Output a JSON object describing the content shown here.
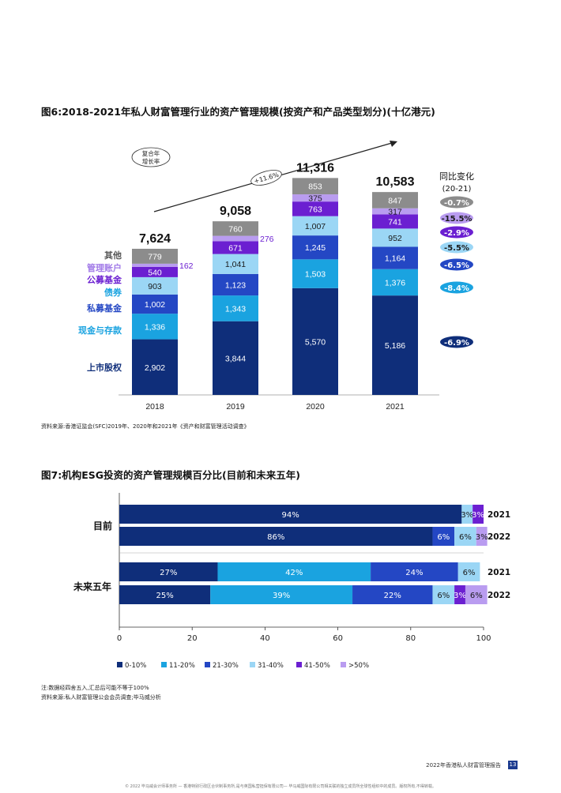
{
  "fig6": {
    "title": "图6:2018-2021年私人财富管理行业的资产管理规模(按资产和产品类型划分)(十亿港元)",
    "source": "资料来源:香港证监会(SFC)2019年、2020年和2021年《资产和财富管理活动调查》",
    "cagr_label_line1": "复合年",
    "cagr_label_line2": "增长率",
    "cagr_value": "+11.6%",
    "yoy_title_line1": "同比变化",
    "yoy_title_line2": "(20-21)"
  },
  "fig7": {
    "title": "图7:机构ESG投资的资产管理规模百分比(目前和未来五年)",
    "note": "注:数据经四舍五入,汇总后可能不等于100%",
    "source": "资料来源:私人财富管理公会会员调查;毕马威分析"
  },
  "footer": {
    "report_title": "2022年香港私人财富管理报告",
    "page_number": "13",
    "copyright": "© 2022 毕马威会计师事务所 — 香港特别行政区合伙制事务所,是与英国私营担保有限公司— 毕马威国际有限公司相关联的独立成员所全球性组织中的成员。版权所有,不得转载。"
  },
  "chart_data": [
    {
      "type": "bar",
      "stacked": true,
      "categories": [
        "2018",
        "2019",
        "2020",
        "2021"
      ],
      "totals": [
        "7,624",
        "9,058",
        "11,316",
        "10,583"
      ],
      "series": [
        {
          "name": "上市股权",
          "color": "#0f2e7a",
          "values": [
            2902,
            3844,
            5570,
            5186
          ],
          "labels": [
            "2,902",
            "3,844",
            "5,570",
            "5,186"
          ],
          "yoy": "-6.9%"
        },
        {
          "name": "现金与存款",
          "color": "#1aa3e0",
          "values": [
            1336,
            1343,
            1503,
            1376
          ],
          "labels": [
            "1,336",
            "1,343",
            "1,503",
            "1,376"
          ],
          "yoy": "-8.4%"
        },
        {
          "name": "私募基金",
          "color": "#2447c4",
          "values": [
            1002,
            1123,
            1245,
            1164
          ],
          "labels": [
            "1,002",
            "1,123",
            "1,245",
            "1,164"
          ],
          "yoy": "-6.5%"
        },
        {
          "name": "债券",
          "color": "#9bd6f5",
          "values": [
            903,
            1041,
            1007,
            952
          ],
          "labels": [
            "903",
            "1,041",
            "1,007",
            "952"
          ],
          "yoy": "-5.5%"
        },
        {
          "name": "公募基金",
          "color": "#6b1fd1",
          "values": [
            540,
            671,
            763,
            741
          ],
          "labels": [
            "540",
            "671",
            "763",
            "741"
          ],
          "yoy": "-2.9%"
        },
        {
          "name": "管理账户",
          "color": "#b99cf0",
          "values": [
            162,
            276,
            375,
            317
          ],
          "labels": [
            "162",
            "276",
            "375",
            "317"
          ],
          "yoy": "-15.5%"
        },
        {
          "name": "其他",
          "color": "#8c8c8c",
          "values": [
            779,
            760,
            853,
            847
          ],
          "labels": [
            "779",
            "760",
            "853",
            "847"
          ],
          "yoy": "-0.7%"
        }
      ]
    },
    {
      "type": "bar",
      "orientation": "horizontal",
      "stacked": true,
      "groups": [
        "目前",
        "未来五年"
      ],
      "rows": [
        {
          "group": "目前",
          "year": "2021",
          "values": [
            94,
            0,
            0,
            3,
            3,
            0
          ]
        },
        {
          "group": "目前",
          "year": "2022",
          "values": [
            86,
            0,
            6,
            6,
            0,
            3
          ]
        },
        {
          "group": "未来五年",
          "year": "2021",
          "values": [
            27,
            42,
            24,
            6,
            0,
            0
          ]
        },
        {
          "group": "未来五年",
          "year": "2022",
          "values": [
            25,
            39,
            22,
            6,
            3,
            6
          ]
        }
      ],
      "series": [
        {
          "name": "0-10%",
          "color": "#0f2e7a"
        },
        {
          "name": "11-20%",
          "color": "#1aa3e0"
        },
        {
          "name": "21-30%",
          "color": "#2447c4"
        },
        {
          "name": "31-40%",
          "color": "#9bd6f5"
        },
        {
          "name": "41-50%",
          "color": "#6b1fd1"
        },
        {
          "name": ">50%",
          "color": "#b99cf0"
        }
      ],
      "xticks": [
        "0",
        "20",
        "40",
        "60",
        "80",
        "100"
      ],
      "xlim": [
        0,
        100
      ]
    }
  ]
}
